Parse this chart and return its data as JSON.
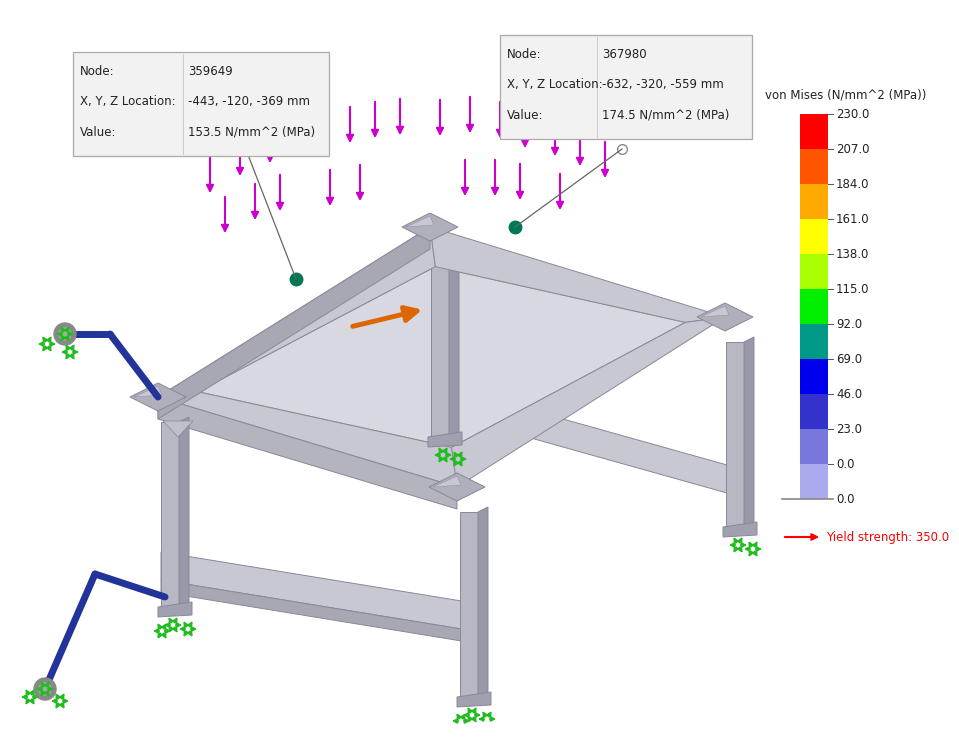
{
  "colorbar_title": "von Mises (N/mm^2 (MPa))",
  "colorbar_values": [
    230.0,
    207.0,
    184.0,
    161.0,
    138.0,
    115.0,
    92.0,
    69.0,
    46.0,
    23.0,
    0.0
  ],
  "colorbar_colors": [
    "#ff0000",
    "#ff5500",
    "#ffaa00",
    "#ffff00",
    "#aaff00",
    "#00ee00",
    "#009988",
    "#0000ee",
    "#3333cc",
    "#7777dd",
    "#aaaaee"
  ],
  "yield_strength_label": "Yield strength: 350.0",
  "node1": {
    "label": "Node:",
    "node_val": "359649",
    "loc_label": "X, Y, Z Location:",
    "loc_val": "-443, -120, -369 mm",
    "val_label": "Value:",
    "val_val": "153.5 N/mm^2 (MPa)"
  },
  "node2": {
    "label": "Node:",
    "node_val": "367980",
    "loc_label": "X, Y, Z Location:",
    "loc_val": "-632, -320, -559 mm",
    "val_label": "Value:",
    "val_val": "174.5 N/mm^2 (MPa)"
  },
  "bg": "#ffffff",
  "sc": "#c8c8d2",
  "sc_dark": "#a8a8b4",
  "sc_mid": "#b4b4be",
  "ec": "#888898"
}
